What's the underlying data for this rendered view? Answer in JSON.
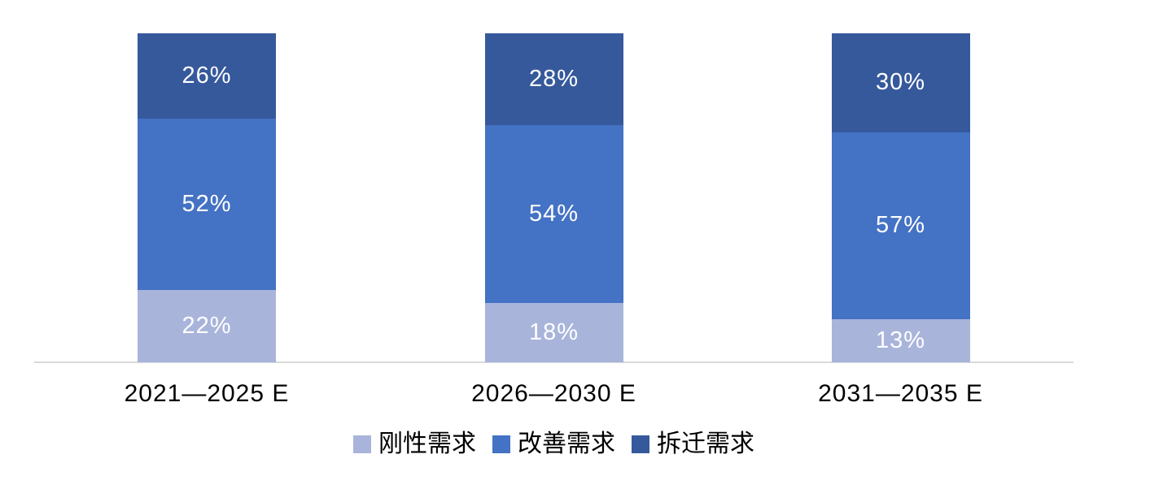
{
  "chart_data": {
    "type": "bar",
    "variant": "stacked-percentage-column",
    "title": "",
    "xlabel": "",
    "ylabel": "",
    "ylim": [
      0,
      100
    ],
    "value_suffix": "%",
    "grid": false,
    "legend_position": "bottom",
    "axis_line_color": "#d9d9d9",
    "label_text_color": "#ffffff",
    "categories": [
      "2021—2025 E",
      "2026—2030 E",
      "2031—2035 E"
    ],
    "series": [
      {
        "name": "刚性需求",
        "color": "#a9b4db",
        "values": [
          22,
          18,
          13
        ],
        "labels": [
          "22%",
          "18%",
          "13%"
        ]
      },
      {
        "name": "改善需求",
        "color": "#4472c4",
        "values": [
          52,
          54,
          57
        ],
        "labels": [
          "52%",
          "54%",
          "57%"
        ]
      },
      {
        "name": "拆迁需求",
        "color": "#36599c",
        "values": [
          26,
          28,
          30
        ],
        "labels": [
          "26%",
          "28%",
          "30%"
        ]
      }
    ]
  }
}
